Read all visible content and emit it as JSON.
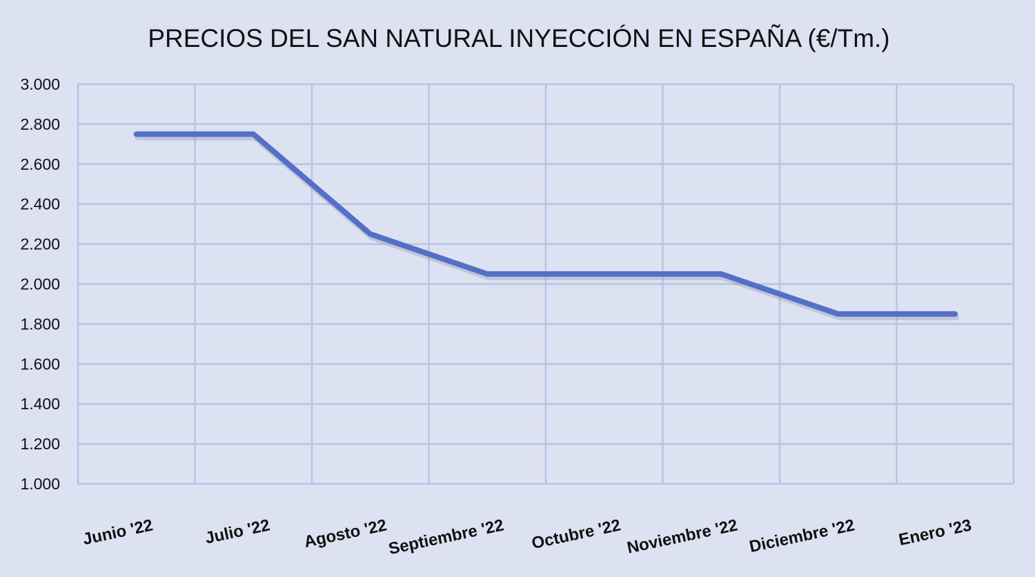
{
  "chart_data": {
    "type": "line",
    "title": "PRECIOS DEL SAN NATURAL INYECCIÓN EN ESPAÑA (€/Tm.)",
    "xlabel": "",
    "ylabel": "",
    "categories": [
      "Junio '22",
      "Julio '22",
      "Agosto '22",
      "Septiembre '22",
      "Octubre '22",
      "Noviembre '22",
      "Diciembre '22",
      "Enero '23"
    ],
    "series": [
      {
        "name": "Precio",
        "values": [
          2750,
          2750,
          2250,
          2050,
          2050,
          2050,
          1850,
          1850
        ],
        "color": "#5470c6"
      }
    ],
    "ylim": [
      1000,
      3000
    ],
    "yticks": [
      1000,
      1200,
      1400,
      1600,
      1800,
      2000,
      2200,
      2400,
      2600,
      2800,
      3000
    ],
    "ytick_labels": [
      "1.000",
      "1.200",
      "1.400",
      "1.600",
      "1.800",
      "2.000",
      "2.200",
      "2.400",
      "2.600",
      "2.800",
      "3.000"
    ],
    "grid": true,
    "legend": "none"
  }
}
